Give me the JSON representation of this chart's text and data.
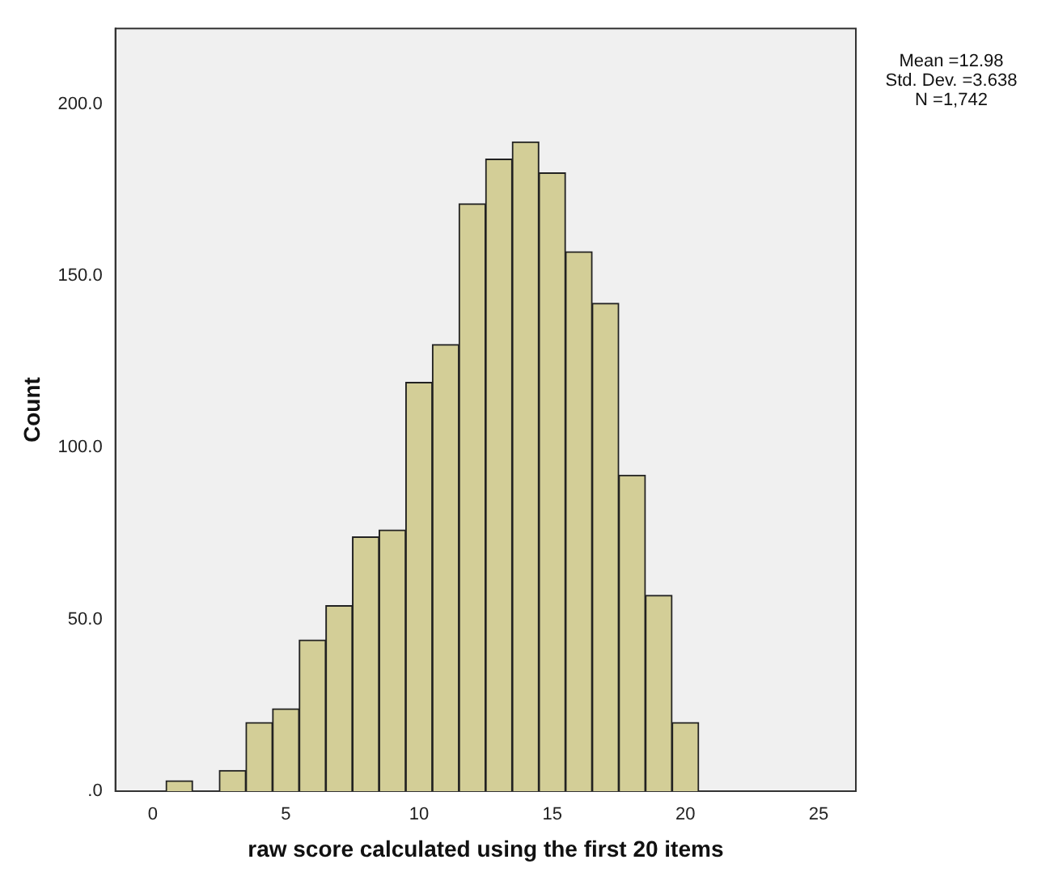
{
  "chart_data": {
    "type": "histogram",
    "xlabel": "raw score calculated using the first 20 items",
    "ylabel": "Count",
    "bins": [
      0.5,
      1.5,
      2.5,
      3.5,
      4.5,
      5.5,
      6.5,
      7.5,
      8.5,
      9.5,
      10.5,
      11.5,
      12.5,
      13.5,
      14.5,
      15.5,
      16.5,
      17.5,
      18.5,
      19.5,
      20.5
    ],
    "values": [
      3,
      0,
      6,
      20,
      24,
      44,
      54,
      74,
      76,
      119,
      130,
      171,
      184,
      189,
      180,
      157,
      142,
      92,
      57,
      20
    ],
    "color": "#d3ce97",
    "xlim": [
      -1.4,
      26.4
    ],
    "xticks": [
      0,
      5,
      10,
      15,
      20,
      25
    ],
    "ylim": [
      0,
      222
    ],
    "yticks": [
      {
        "value": 0,
        "label": ".0"
      },
      {
        "value": 50,
        "label": "50.0"
      },
      {
        "value": 100,
        "label": "100.0"
      },
      {
        "value": 150,
        "label": "150.0"
      },
      {
        "value": 200,
        "label": "200.0"
      }
    ],
    "grid": false,
    "legend": false,
    "annotations": [
      "Mean =12.98",
      "Std. Dev. =3.638",
      "N =1,742"
    ]
  }
}
